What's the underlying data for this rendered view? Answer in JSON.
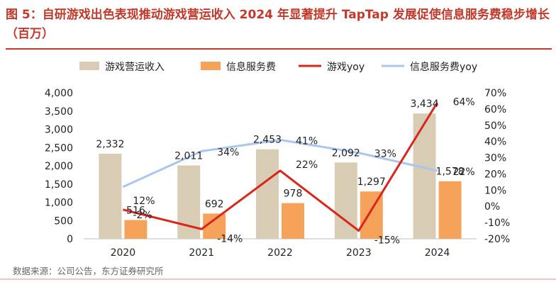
{
  "title": "图 5：自研游戏出色表现推动游戏营运收入 2024 年显著提升 TapTap 发展促使信息服务费稳步增长（百万）",
  "source": "数据来源：公司公告，东方证券研究所",
  "colors": {
    "title": "#c0392b",
    "bar1": "#d8cdb4",
    "bar2": "#f5a25a",
    "line1": "#d9261c",
    "line2": "#a9c6ee"
  },
  "chart_data": {
    "type": "bar",
    "categories": [
      "2020",
      "2021",
      "2022",
      "2023",
      "2024"
    ],
    "series": [
      {
        "name": "游戏营运收入",
        "type": "bar",
        "axis": "left",
        "values": [
          2332,
          2011,
          2453,
          2092,
          3434
        ],
        "labels": [
          "2,332",
          "2,011",
          "2,453",
          "2,092",
          "3,434"
        ]
      },
      {
        "name": "信息服务费",
        "type": "bar",
        "axis": "left",
        "values": [
          516,
          692,
          978,
          1297,
          1578
        ],
        "labels": [
          "516",
          "692",
          "978",
          "1,297",
          "1,578"
        ]
      },
      {
        "name": "游戏yoy",
        "type": "line",
        "axis": "right",
        "values": [
          -2,
          -14,
          22,
          -15,
          64
        ],
        "labels": [
          "-2%",
          "-14%",
          "22%",
          "-15%",
          "64%"
        ]
      },
      {
        "name": "信息服务费yoy",
        "type": "line",
        "axis": "right",
        "values": [
          12,
          34,
          41,
          33,
          22
        ],
        "labels": [
          "12%",
          "34%",
          "41%",
          "33%",
          "22%"
        ]
      }
    ],
    "y_left": {
      "ylim": [
        0,
        4000
      ],
      "ticks": [
        "0",
        "500",
        "1,000",
        "1,500",
        "2,000",
        "2,500",
        "3,000",
        "3,500",
        "4,000"
      ]
    },
    "y_right": {
      "ylim": [
        -20,
        70
      ],
      "ticks": [
        "-20%",
        "-10%",
        "0%",
        "10%",
        "20%",
        "30%",
        "40%",
        "50%",
        "60%",
        "70%"
      ]
    },
    "legend_position": "top",
    "grid": false
  }
}
